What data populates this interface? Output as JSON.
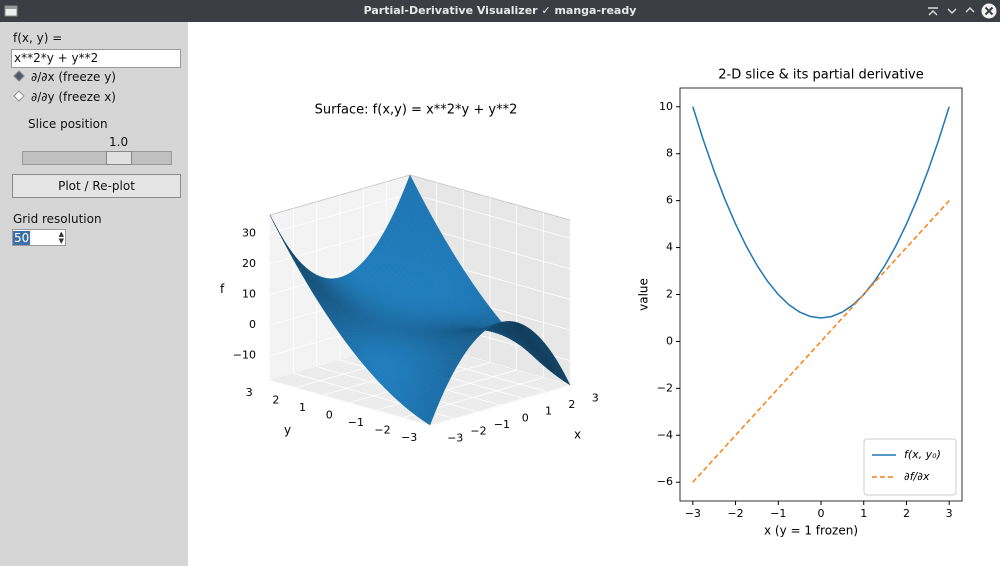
{
  "window": {
    "title": "Partial-Derivative Visualizer ✓ manga-ready"
  },
  "sidebar": {
    "function_label": "f(x, y) =",
    "function_input": "x**2*y + y**2",
    "options": [
      {
        "label": "∂/∂x  (freeze y)",
        "selected": true
      },
      {
        "label": "∂/∂y  (freeze x)",
        "selected": false
      }
    ],
    "slice_label": "Slice position",
    "slice_value": "1.0",
    "plot_button": "Plot / Re-plot",
    "grid_label": "Grid resolution",
    "grid_value": "50"
  },
  "chart_data": [
    {
      "type": "surface3d",
      "title": "Surface: f(x,y) = x**2*y + y**2",
      "xlabel": "x",
      "ylabel": "y",
      "zlabel": "f",
      "color": "#1f77b4",
      "xlim": [
        -3,
        3
      ],
      "ylim": [
        -3,
        3
      ],
      "zlim": [
        -18,
        36
      ],
      "xticks": [
        {
          "value": -3,
          "label": "−3"
        },
        {
          "value": -2,
          "label": "−2"
        },
        {
          "value": -1,
          "label": "−1"
        },
        0,
        1,
        2,
        3
      ],
      "yticks": [
        {
          "value": -3,
          "label": "−3"
        },
        {
          "value": -2,
          "label": "−2"
        },
        {
          "value": -1,
          "label": "−1"
        },
        0,
        1,
        2,
        3
      ],
      "zticks": [
        {
          "value": -10,
          "label": "−10"
        },
        0,
        10,
        20,
        30
      ]
    },
    {
      "type": "line",
      "title": "2-D slice & its partial derivative",
      "xlabel": "x  (y = 1 frozen)",
      "ylabel": "value",
      "x": [
        -3,
        -2.75,
        -2.5,
        -2.25,
        -2,
        -1.75,
        -1.5,
        -1.25,
        -1,
        -0.75,
        -0.5,
        -0.25,
        0,
        0.25,
        0.5,
        0.75,
        1,
        1.25,
        1.5,
        1.75,
        2,
        2.25,
        2.5,
        2.75,
        3
      ],
      "series": [
        {
          "name": "f(x, y₀)",
          "color": "#1f77b4",
          "style": "solid",
          "values": [
            10,
            8.5625,
            7.25,
            6.0625,
            5,
            4.0625,
            3.25,
            2.5625,
            2,
            1.5625,
            1.25,
            1.0625,
            1,
            1.0625,
            1.25,
            1.5625,
            2,
            2.5625,
            3.25,
            4.0625,
            5,
            6.0625,
            7.25,
            8.5625,
            10
          ]
        },
        {
          "name": "∂f/∂x",
          "color": "#ff7f0e",
          "style": "dashed",
          "values": [
            -6,
            -5.5,
            -5,
            -4.5,
            -4,
            -3.5,
            -3,
            -2.5,
            -2,
            -1.5,
            -1,
            -0.5,
            0,
            0.5,
            1,
            1.5,
            2,
            2.5,
            3,
            3.5,
            4,
            4.5,
            5,
            5.5,
            6
          ]
        }
      ],
      "xlim": [
        -3.3,
        3.3
      ],
      "ylim": [
        -6.8,
        10.8
      ],
      "xticks": [
        {
          "value": -3,
          "label": "−3"
        },
        {
          "value": -2,
          "label": "−2"
        },
        {
          "value": -1,
          "label": "−1"
        },
        0,
        1,
        2,
        3
      ],
      "yticks": [
        {
          "value": -6,
          "label": "−6"
        },
        {
          "value": -4,
          "label": "−4"
        },
        {
          "value": -2,
          "label": "−2"
        },
        0,
        2,
        4,
        6,
        8,
        10
      ],
      "legend": "lower right"
    }
  ]
}
